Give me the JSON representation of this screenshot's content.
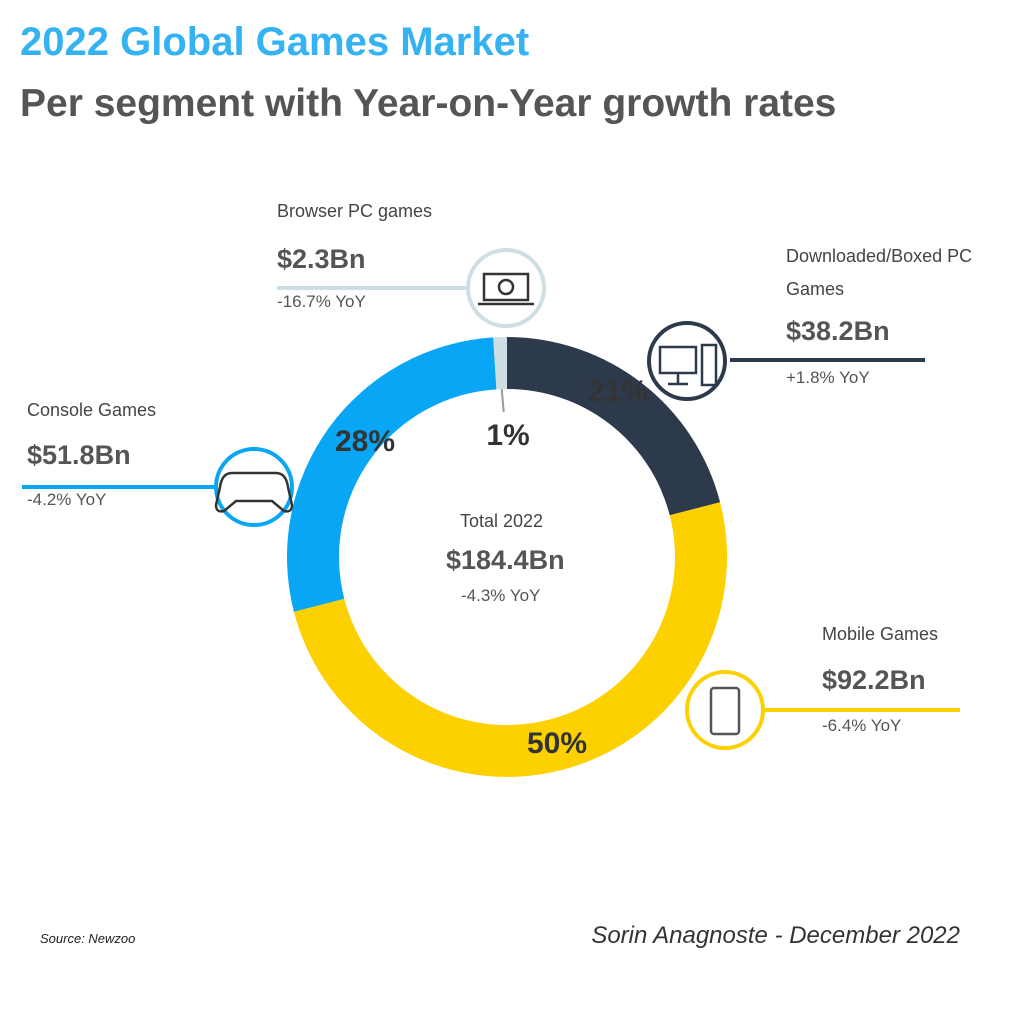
{
  "chart_data": {
    "type": "donut",
    "title": "2022 Global Games Market",
    "subtitle": "Per segment with Year-on-Year growth rates",
    "categories": [
      "Downloaded/Boxed PC Games",
      "Mobile Games",
      "Console Games",
      "Browser PC games"
    ],
    "values": [
      21,
      50,
      28,
      1
    ],
    "value_labels": [
      "21%",
      "50%",
      "28%",
      "1%"
    ],
    "colors": [
      "#2d3a4c",
      "#fdd000",
      "#08a6f4",
      "#cfdde4"
    ],
    "amounts": [
      "$38.2Bn",
      "$92.2Bn",
      "$51.8Bn",
      "$2.3Bn"
    ],
    "yoy": [
      "+1.8% YoY",
      "-6.4% YoY",
      "-4.2% YoY",
      "-16.7% YoY"
    ],
    "center": {
      "label": "Total 2022",
      "amount": "$184.4Bn",
      "yoy": "-4.3% YoY"
    },
    "source": "Source: Newzoo",
    "author": "Sorin Anagnoste - December 2022"
  }
}
